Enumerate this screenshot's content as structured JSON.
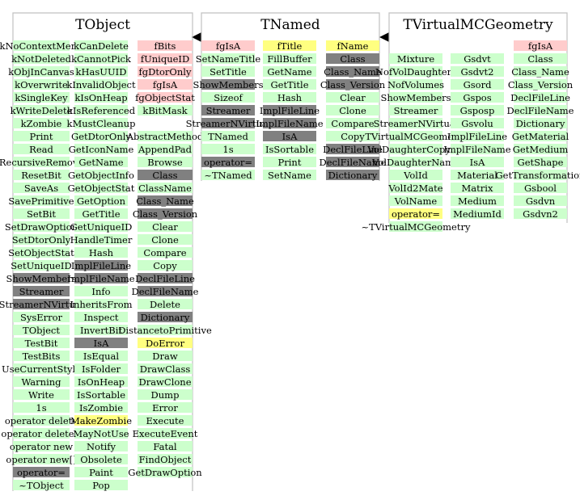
{
  "palette": {
    "green": "#ccffcc",
    "pink": "#ffcccc",
    "yellow": "#ffff80",
    "gray": "#808080",
    "border": "#c0c0c0",
    "text": "#000000"
  },
  "classes": [
    {
      "name": "TObject",
      "columns": [
        [
          {
            "t": "kNoContextMenu",
            "c": "green"
          },
          {
            "t": "kNotDeleted",
            "c": "green"
          },
          {
            "t": "kObjInCanvas",
            "c": "green"
          },
          {
            "t": "kOverwrite",
            "c": "green"
          },
          {
            "t": "kSingleKey",
            "c": "green"
          },
          {
            "t": "kWriteDelete",
            "c": "green"
          },
          {
            "t": "kZombie",
            "c": "green"
          },
          {
            "t": "Print",
            "c": "green"
          },
          {
            "t": "Read",
            "c": "green"
          },
          {
            "t": "RecursiveRemove",
            "c": "green"
          },
          {
            "t": "ResetBit",
            "c": "green"
          },
          {
            "t": "SaveAs",
            "c": "green"
          },
          {
            "t": "SavePrimitive",
            "c": "green"
          },
          {
            "t": "SetBit",
            "c": "green"
          },
          {
            "t": "SetDrawOption",
            "c": "green"
          },
          {
            "t": "SetDtorOnly",
            "c": "green"
          },
          {
            "t": "SetObjectStat",
            "c": "green"
          },
          {
            "t": "SetUniqueID",
            "c": "green"
          },
          {
            "t": "ShowMembers",
            "c": "gray"
          },
          {
            "t": "Streamer",
            "c": "gray"
          },
          {
            "t": "StreamerNVirtual",
            "c": "gray"
          },
          {
            "t": "SysError",
            "c": "green"
          },
          {
            "t": "TObject",
            "c": "green"
          },
          {
            "t": "TestBit",
            "c": "green"
          },
          {
            "t": "TestBits",
            "c": "green"
          },
          {
            "t": "UseCurrentStyle",
            "c": "green"
          },
          {
            "t": "Warning",
            "c": "green"
          },
          {
            "t": "Write",
            "c": "green"
          },
          {
            "t": "1s",
            "c": "green"
          },
          {
            "t": "operator delete",
            "c": "green"
          },
          {
            "t": "operator delete[]",
            "c": "green"
          },
          {
            "t": "operator new",
            "c": "green"
          },
          {
            "t": "operator new[]",
            "c": "green"
          },
          {
            "t": "operator=",
            "c": "gray"
          },
          {
            "t": "~TObject",
            "c": "green"
          }
        ],
        [
          {
            "t": "kCanDelete",
            "c": "green"
          },
          {
            "t": "kCannotPick",
            "c": "green"
          },
          {
            "t": "kHasUUID",
            "c": "green"
          },
          {
            "t": "kInvalidObject",
            "c": "green"
          },
          {
            "t": "kIsOnHeap",
            "c": "green"
          },
          {
            "t": "kIsReferenced",
            "c": "green"
          },
          {
            "t": "kMustCleanup",
            "c": "green"
          },
          {
            "t": "GetDtorOnly",
            "c": "green"
          },
          {
            "t": "GetIconName",
            "c": "green"
          },
          {
            "t": "GetName",
            "c": "green"
          },
          {
            "t": "GetObjectInfo",
            "c": "green"
          },
          {
            "t": "GetObjectStat",
            "c": "green"
          },
          {
            "t": "GetOption",
            "c": "green"
          },
          {
            "t": "GetTitle",
            "c": "green"
          },
          {
            "t": "GetUniqueID",
            "c": "green"
          },
          {
            "t": "HandleTimer",
            "c": "green"
          },
          {
            "t": "Hash",
            "c": "green"
          },
          {
            "t": "ImplFileLine",
            "c": "gray"
          },
          {
            "t": "ImplFileName",
            "c": "gray"
          },
          {
            "t": "Info",
            "c": "green"
          },
          {
            "t": "InheritsFrom",
            "c": "green"
          },
          {
            "t": "Inspect",
            "c": "green"
          },
          {
            "t": "InvertBit",
            "c": "green"
          },
          {
            "t": "IsA",
            "c": "gray"
          },
          {
            "t": "IsEqual",
            "c": "green"
          },
          {
            "t": "IsFolder",
            "c": "green"
          },
          {
            "t": "IsOnHeap",
            "c": "green"
          },
          {
            "t": "IsSortable",
            "c": "green"
          },
          {
            "t": "IsZombie",
            "c": "green"
          },
          {
            "t": "MakeZombie",
            "c": "yellow"
          },
          {
            "t": "MayNotUse",
            "c": "green"
          },
          {
            "t": "Notify",
            "c": "green"
          },
          {
            "t": "Obsolete",
            "c": "green"
          },
          {
            "t": "Paint",
            "c": "green"
          },
          {
            "t": "Pop",
            "c": "green"
          }
        ],
        [
          {
            "t": "fBits",
            "c": "pink"
          },
          {
            "t": "fUniqueID",
            "c": "pink"
          },
          {
            "t": "fgDtorOnly",
            "c": "pink"
          },
          {
            "t": "fgIsA",
            "c": "pink"
          },
          {
            "t": "fgObjectStat",
            "c": "pink"
          },
          {
            "t": "kBitMask",
            "c": "green"
          },
          {
            "t": "",
            "c": "none"
          },
          {
            "t": "AbstractMethod",
            "c": "green"
          },
          {
            "t": "AppendPad",
            "c": "green"
          },
          {
            "t": "Browse",
            "c": "green"
          },
          {
            "t": "Class",
            "c": "gray"
          },
          {
            "t": "ClassName",
            "c": "green"
          },
          {
            "t": "Class_Name",
            "c": "gray"
          },
          {
            "t": "Class_Version",
            "c": "gray"
          },
          {
            "t": "Clear",
            "c": "green"
          },
          {
            "t": "Clone",
            "c": "green"
          },
          {
            "t": "Compare",
            "c": "green"
          },
          {
            "t": "Copy",
            "c": "green"
          },
          {
            "t": "DeclFileLine",
            "c": "gray"
          },
          {
            "t": "DeclFileName",
            "c": "gray"
          },
          {
            "t": "Delete",
            "c": "green"
          },
          {
            "t": "Dictionary",
            "c": "gray"
          },
          {
            "t": "DistancetoPrimitive",
            "c": "green"
          },
          {
            "t": "DoError",
            "c": "yellow"
          },
          {
            "t": "Draw",
            "c": "green"
          },
          {
            "t": "DrawClass",
            "c": "green"
          },
          {
            "t": "DrawClone",
            "c": "green"
          },
          {
            "t": "Dump",
            "c": "green"
          },
          {
            "t": "Error",
            "c": "green"
          },
          {
            "t": "Execute",
            "c": "green"
          },
          {
            "t": "ExecuteEvent",
            "c": "green"
          },
          {
            "t": "Fatal",
            "c": "green"
          },
          {
            "t": "FindObject",
            "c": "green"
          },
          {
            "t": "GetDrawOption",
            "c": "green"
          }
        ]
      ]
    },
    {
      "name": "TNamed",
      "columns": [
        [
          {
            "t": "fgIsA",
            "c": "pink"
          },
          {
            "t": "SetNameTitle",
            "c": "green"
          },
          {
            "t": "SetTitle",
            "c": "green"
          },
          {
            "t": "ShowMembers",
            "c": "gray"
          },
          {
            "t": "Sizeof",
            "c": "green"
          },
          {
            "t": "Streamer",
            "c": "gray"
          },
          {
            "t": "StreamerNVirtual",
            "c": "gray"
          },
          {
            "t": "TNamed",
            "c": "green"
          },
          {
            "t": "1s",
            "c": "green"
          },
          {
            "t": "operator=",
            "c": "gray"
          },
          {
            "t": "~TNamed",
            "c": "green"
          }
        ],
        [
          {
            "t": "fTitle",
            "c": "yellow"
          },
          {
            "t": "FillBuffer",
            "c": "green"
          },
          {
            "t": "GetName",
            "c": "green"
          },
          {
            "t": "GetTitle",
            "c": "green"
          },
          {
            "t": "Hash",
            "c": "green"
          },
          {
            "t": "ImplFileLine",
            "c": "gray"
          },
          {
            "t": "ImplFileName",
            "c": "gray"
          },
          {
            "t": "IsA",
            "c": "gray"
          },
          {
            "t": "IsSortable",
            "c": "green"
          },
          {
            "t": "Print",
            "c": "green"
          },
          {
            "t": "SetName",
            "c": "green"
          }
        ],
        [
          {
            "t": "fName",
            "c": "yellow"
          },
          {
            "t": "Class",
            "c": "gray"
          },
          {
            "t": "Class_Name",
            "c": "gray"
          },
          {
            "t": "Class_Version",
            "c": "gray"
          },
          {
            "t": "Clear",
            "c": "green"
          },
          {
            "t": "Clone",
            "c": "green"
          },
          {
            "t": "Compare",
            "c": "green"
          },
          {
            "t": "Copy",
            "c": "green"
          },
          {
            "t": "DeclFileLine",
            "c": "gray"
          },
          {
            "t": "DeclFileName",
            "c": "gray"
          },
          {
            "t": "Dictionary",
            "c": "gray"
          }
        ]
      ]
    },
    {
      "name": "TVirtualMCGeometry",
      "columns": [
        [
          {
            "t": "",
            "c": "none"
          },
          {
            "t": "Mixture",
            "c": "green"
          },
          {
            "t": "NofVolDaughters",
            "c": "green"
          },
          {
            "t": "NofVolumes",
            "c": "green"
          },
          {
            "t": "ShowMembers",
            "c": "green"
          },
          {
            "t": "Streamer",
            "c": "green"
          },
          {
            "t": "StreamerNVirtual",
            "c": "green"
          },
          {
            "t": "TVirtualMCGeometry",
            "c": "green"
          },
          {
            "t": "VolDaughterCopyNo",
            "c": "green"
          },
          {
            "t": "VolDaughterName",
            "c": "green"
          },
          {
            "t": "VolId",
            "c": "green"
          },
          {
            "t": "VolId2Mate",
            "c": "green"
          },
          {
            "t": "VolName",
            "c": "green"
          },
          {
            "t": "operator=",
            "c": "yellow"
          },
          {
            "t": "~TVirtualMCGeometry",
            "c": "green"
          }
        ],
        [
          {
            "t": "",
            "c": "none"
          },
          {
            "t": "Gsdvt",
            "c": "green"
          },
          {
            "t": "Gsdvt2",
            "c": "green"
          },
          {
            "t": "Gsord",
            "c": "green"
          },
          {
            "t": "Gspos",
            "c": "green"
          },
          {
            "t": "Gsposp",
            "c": "green"
          },
          {
            "t": "Gsvolu",
            "c": "green"
          },
          {
            "t": "ImplFileLine",
            "c": "green"
          },
          {
            "t": "ImplFileName",
            "c": "green"
          },
          {
            "t": "IsA",
            "c": "green"
          },
          {
            "t": "Material",
            "c": "green"
          },
          {
            "t": "Matrix",
            "c": "green"
          },
          {
            "t": "Medium",
            "c": "green"
          },
          {
            "t": "MediumId",
            "c": "green"
          }
        ],
        [
          {
            "t": "fgIsA",
            "c": "pink"
          },
          {
            "t": "Class",
            "c": "green"
          },
          {
            "t": "Class_Name",
            "c": "green"
          },
          {
            "t": "Class_Version",
            "c": "green"
          },
          {
            "t": "DeclFileLine",
            "c": "green"
          },
          {
            "t": "DeclFileName",
            "c": "green"
          },
          {
            "t": "Dictionary",
            "c": "green"
          },
          {
            "t": "GetMaterial",
            "c": "green"
          },
          {
            "t": "GetMedium",
            "c": "green"
          },
          {
            "t": "GetShape",
            "c": "green"
          },
          {
            "t": "GetTransformation",
            "c": "green"
          },
          {
            "t": "Gsbool",
            "c": "green"
          },
          {
            "t": "Gsdvn",
            "c": "green"
          },
          {
            "t": "Gsdvn2",
            "c": "green"
          }
        ]
      ]
    }
  ]
}
